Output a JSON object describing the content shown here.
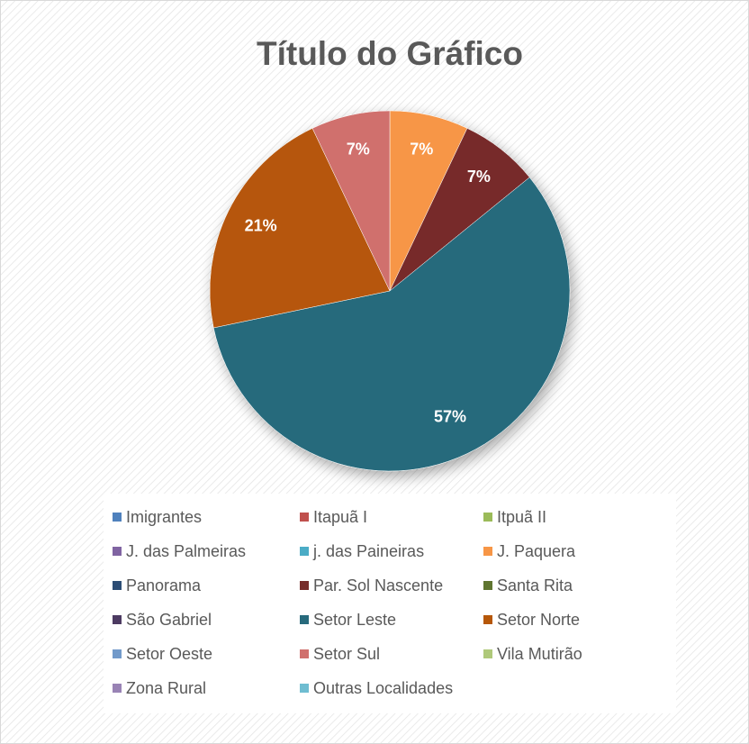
{
  "chart_data": {
    "type": "pie",
    "title": "Título do Gráfico",
    "categories": [
      "Imigrantes",
      "Itapuã I",
      "Itpuã II",
      "J. das Palmeiras",
      "j. das Paineiras",
      "J. Paquera",
      "Panorama",
      "Par. Sol Nascente",
      "Santa Rita",
      "São Gabriel",
      "Setor Leste",
      "Setor Norte",
      "Setor Oeste",
      "Setor Sul",
      "Vila Mutirão",
      "Zona Rural",
      "Outras Localidades"
    ],
    "values": [
      0,
      0,
      0,
      0,
      0,
      7,
      0,
      7,
      0,
      0,
      57,
      21,
      0,
      7,
      0,
      0,
      0
    ],
    "value_labels": [
      null,
      null,
      null,
      null,
      null,
      "7%",
      null,
      "7%",
      null,
      null,
      "57%",
      "21%",
      null,
      "7%",
      null,
      null,
      null
    ],
    "colors": [
      "#4f81bd",
      "#c0504d",
      "#9bbb59",
      "#8064a2",
      "#4bacc6",
      "#f79646",
      "#2c4d75",
      "#772c2a",
      "#5f7530",
      "#4d3b62",
      "#276a7c",
      "#b65708",
      "#729aca",
      "#d0706d",
      "#afc97a",
      "#9983b5",
      "#6fbdd1"
    ],
    "legend": "bottom"
  }
}
